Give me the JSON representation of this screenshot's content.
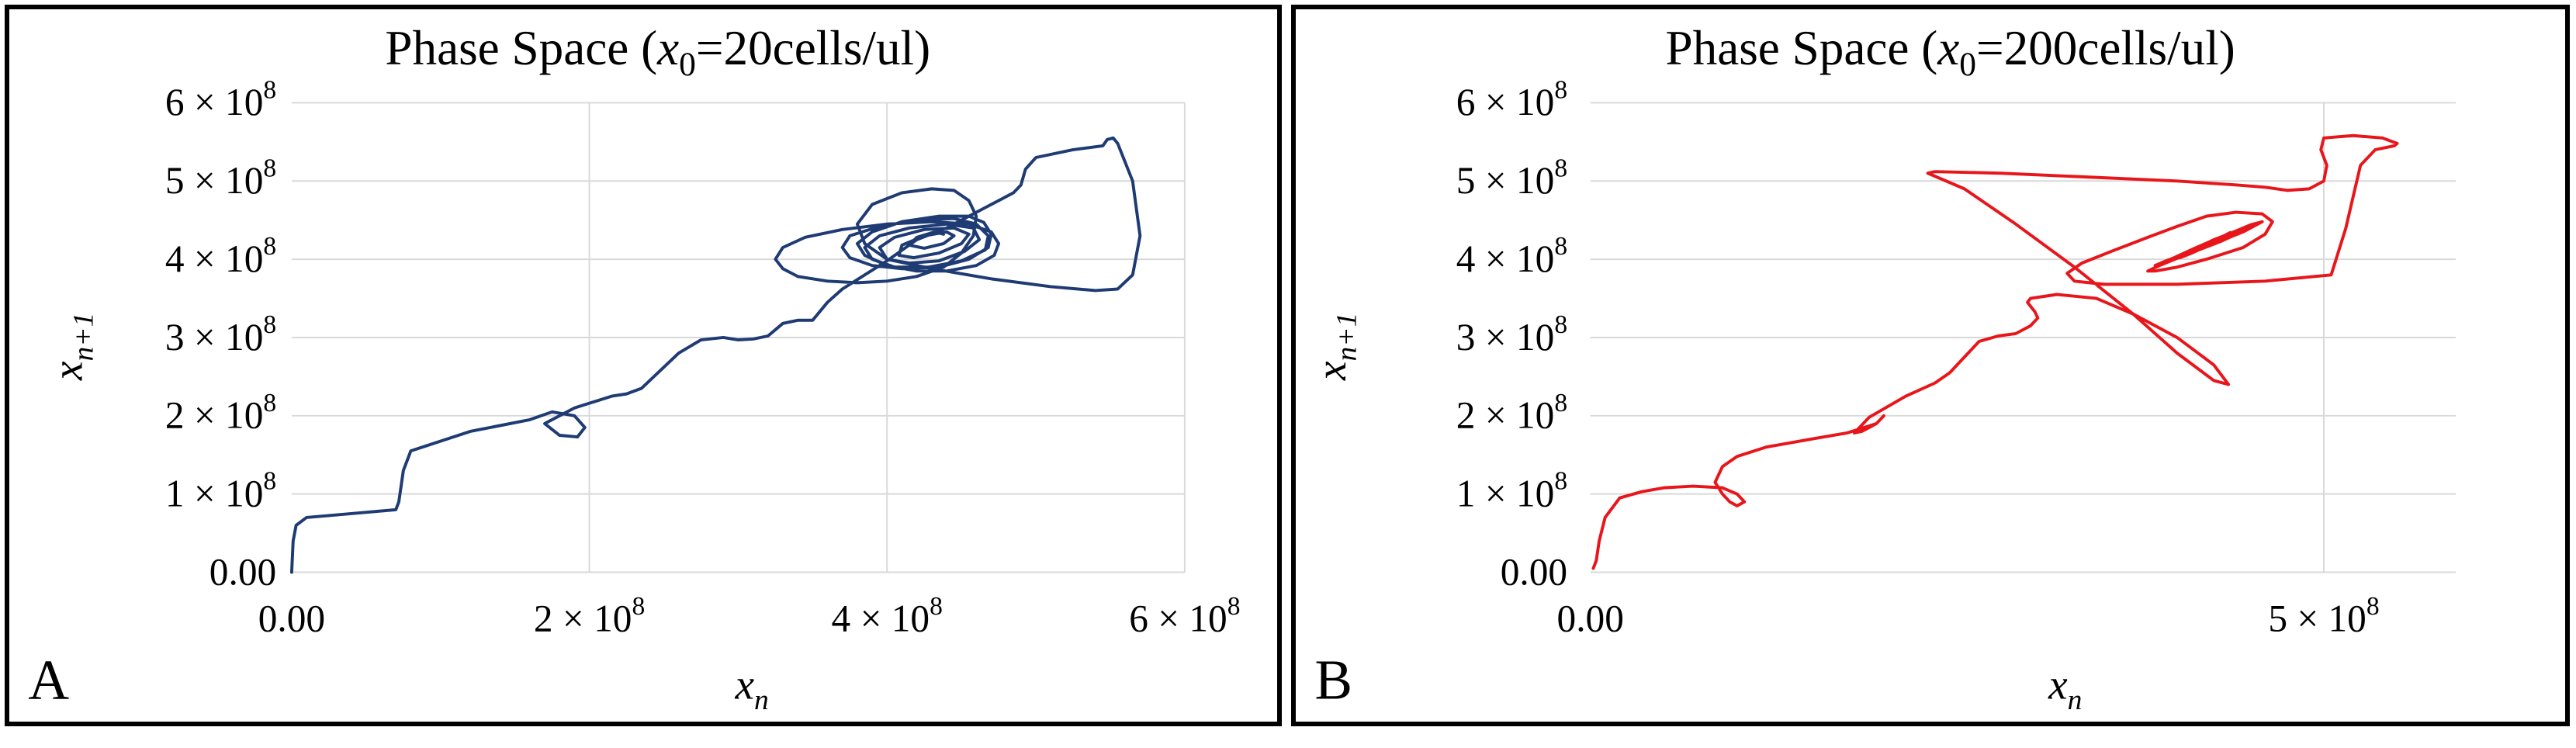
{
  "chart_data": [
    {
      "panel_label": "A",
      "type": "line",
      "title": "Phase Space (",
      "title_var": "x",
      "title_sub": "0",
      "title_rest": "=20cells/ul)",
      "xlabel_var": "x",
      "xlabel_sub": "n",
      "ylabel_var": "x",
      "ylabel_sub": "n+1",
      "xlim": [
        0,
        600000000
      ],
      "ylim": [
        0,
        600000000
      ],
      "x_ticks": [
        {
          "value": 0,
          "mant": "0.00",
          "exp": ""
        },
        {
          "value": 200000000,
          "mant": "2 × 10",
          "exp": "8"
        },
        {
          "value": 400000000,
          "mant": "4 × 10",
          "exp": "8"
        },
        {
          "value": 600000000,
          "mant": "6 × 10",
          "exp": "8"
        }
      ],
      "y_ticks": [
        {
          "value": 0,
          "mant": "0.00",
          "exp": ""
        },
        {
          "value": 100000000,
          "mant": "1 × 10",
          "exp": "8"
        },
        {
          "value": 200000000,
          "mant": "2 × 10",
          "exp": "8"
        },
        {
          "value": 300000000,
          "mant": "3 × 10",
          "exp": "8"
        },
        {
          "value": 400000000,
          "mant": "4 × 10",
          "exp": "8"
        },
        {
          "value": 500000000,
          "mant": "5 × 10",
          "exp": "8"
        },
        {
          "value": 600000000,
          "mant": "6 × 10",
          "exp": "8"
        }
      ],
      "grid": true,
      "color": "#1f3b73",
      "series": [
        {
          "x": [
            0,
            1000000,
            3000000,
            10000000,
            40000000,
            70000000,
            72000000,
            75000000,
            80000000,
            120000000,
            160000000,
            175000000,
            190000000,
            197000000,
            192000000,
            180000000,
            170000000,
            190000000,
            215000000,
            225000000,
            235000000,
            260000000,
            275000000,
            290000000,
            300000000,
            310000000,
            320000000,
            330000000,
            340000000,
            350000000,
            360000000,
            370000000,
            385000000,
            400000000,
            420000000,
            440000000,
            460000000,
            475000000,
            485000000,
            490000000,
            493000000,
            500000000,
            525000000,
            545000000,
            548000000,
            552000000,
            555000000,
            565000000,
            570000000,
            565000000,
            555000000,
            540000000,
            510000000,
            470000000,
            430000000,
            400000000,
            385000000,
            380000000,
            390000000,
            410000000,
            430000000,
            445000000,
            455000000,
            460000000,
            458000000,
            450000000,
            438000000,
            420000000,
            400000000,
            380000000,
            360000000,
            340000000,
            330000000,
            325000000,
            330000000,
            345000000,
            370000000,
            400000000,
            430000000,
            455000000,
            470000000,
            475000000,
            472000000,
            460000000,
            440000000,
            420000000,
            400000000,
            385000000,
            380000000,
            390000000,
            410000000,
            435000000,
            455000000,
            465000000,
            470000000,
            468000000,
            455000000,
            435000000,
            410000000,
            390000000,
            375000000,
            370000000,
            375000000,
            395000000,
            420000000,
            445000000,
            460000000,
            468000000,
            466000000,
            450000000,
            428000000,
            405000000,
            390000000,
            385000000,
            395000000,
            415000000,
            440000000,
            458000000,
            462000000,
            452000000,
            435000000,
            415000000,
            400000000,
            395000000,
            405000000,
            425000000,
            445000000,
            455000000,
            450000000,
            435000000,
            418000000,
            408000000,
            410000000,
            425000000,
            440000000,
            445000000,
            438000000,
            425000000,
            415000000,
            420000000,
            432000000,
            438000000
          ],
          "y": [
            0,
            40000000,
            60000000,
            70000000,
            75000000,
            80000000,
            90000000,
            130000000,
            155000000,
            180000000,
            195000000,
            205000000,
            200000000,
            185000000,
            173000000,
            175000000,
            190000000,
            210000000,
            225000000,
            228000000,
            235000000,
            280000000,
            297000000,
            300000000,
            297000000,
            298000000,
            302000000,
            318000000,
            322000000,
            322000000,
            345000000,
            362000000,
            380000000,
            398000000,
            425000000,
            440000000,
            460000000,
            475000000,
            485000000,
            495000000,
            515000000,
            530000000,
            540000000,
            545000000,
            553000000,
            555000000,
            548000000,
            500000000,
            430000000,
            380000000,
            362000000,
            360000000,
            365000000,
            375000000,
            388000000,
            400000000,
            420000000,
            445000000,
            470000000,
            485000000,
            490000000,
            488000000,
            475000000,
            455000000,
            430000000,
            408000000,
            390000000,
            378000000,
            372000000,
            370000000,
            372000000,
            378000000,
            388000000,
            400000000,
            415000000,
            428000000,
            438000000,
            445000000,
            448000000,
            445000000,
            435000000,
            420000000,
            405000000,
            392000000,
            385000000,
            385000000,
            392000000,
            405000000,
            420000000,
            435000000,
            448000000,
            455000000,
            455000000,
            447000000,
            432000000,
            415000000,
            400000000,
            390000000,
            388000000,
            392000000,
            402000000,
            415000000,
            430000000,
            442000000,
            450000000,
            452000000,
            445000000,
            430000000,
            412000000,
            398000000,
            390000000,
            390000000,
            400000000,
            415000000,
            430000000,
            440000000,
            445000000,
            440000000,
            425000000,
            410000000,
            398000000,
            395000000,
            400000000,
            415000000,
            428000000,
            438000000,
            440000000,
            432000000,
            420000000,
            408000000,
            402000000,
            405000000,
            418000000,
            430000000,
            435000000,
            430000000,
            420000000,
            414000000,
            418000000,
            428000000,
            435000000,
            432000000
          ]
        }
      ]
    },
    {
      "panel_label": "B",
      "type": "line",
      "title": "Phase Space (",
      "title_var": "x",
      "title_sub": "0",
      "title_rest": "=200cells/ul)",
      "xlabel_var": "x",
      "xlabel_sub": "n",
      "ylabel_var": "x",
      "ylabel_sub": "n+1",
      "xlim": [
        0,
        590000000
      ],
      "ylim": [
        0,
        600000000
      ],
      "x_ticks": [
        {
          "value": 0,
          "mant": "0.00",
          "exp": ""
        },
        {
          "value": 500000000,
          "mant": "5 × 10",
          "exp": "8"
        }
      ],
      "y_ticks": [
        {
          "value": 0,
          "mant": "0.00",
          "exp": ""
        },
        {
          "value": 100000000,
          "mant": "1 × 10",
          "exp": "8"
        },
        {
          "value": 200000000,
          "mant": "2 × 10",
          "exp": "8"
        },
        {
          "value": 300000000,
          "mant": "3 × 10",
          "exp": "8"
        },
        {
          "value": 400000000,
          "mant": "4 × 10",
          "exp": "8"
        },
        {
          "value": 500000000,
          "mant": "5 × 10",
          "exp": "8"
        },
        {
          "value": 600000000,
          "mant": "6 × 10",
          "exp": "8"
        }
      ],
      "grid": true,
      "color": "#e8161b",
      "series": [
        {
          "x": [
            2000000,
            4000000,
            6000000,
            10000000,
            20000000,
            35000000,
            50000000,
            70000000,
            90000000,
            100000000,
            105000000,
            100000000,
            95000000,
            90000000,
            85000000,
            90000000,
            100000000,
            120000000,
            150000000,
            175000000,
            195000000,
            200000000,
            195000000,
            185000000,
            180000000,
            190000000,
            215000000,
            235000000,
            245000000,
            255000000,
            265000000,
            278000000,
            290000000,
            300000000,
            305000000,
            303000000,
            300000000,
            298000000,
            300000000,
            318000000,
            345000000,
            370000000,
            400000000,
            425000000,
            435000000,
            425000000,
            400000000,
            370000000,
            330000000,
            290000000,
            255000000,
            230000000,
            235000000,
            280000000,
            340000000,
            400000000,
            440000000,
            460000000,
            475000000,
            490000000,
            500000000,
            502000000,
            498000000,
            500000000,
            520000000,
            540000000,
            550000000,
            548000000,
            535000000,
            525000000,
            520000000,
            515000000,
            505000000,
            460000000,
            400000000,
            350000000,
            330000000,
            325000000,
            335000000,
            355000000,
            380000000,
            400000000,
            420000000,
            440000000,
            458000000,
            465000000,
            460000000,
            445000000,
            420000000,
            400000000,
            385000000,
            380000000,
            388000000,
            405000000,
            425000000,
            445000000,
            455000000,
            458000000,
            450000000,
            435000000,
            418000000,
            402000000,
            390000000,
            385000000,
            392000000,
            408000000,
            425000000,
            440000000,
            450000000,
            452000000,
            445000000,
            430000000,
            412000000,
            398000000,
            392000000,
            398000000,
            412000000,
            428000000,
            440000000,
            443000000,
            437000000,
            424000000,
            410000000,
            402000000,
            405000000,
            418000000,
            430000000,
            436000000,
            433000000,
            422000000,
            413000000,
            415000000,
            425000000,
            432000000
          ],
          "y": [
            5000000,
            15000000,
            40000000,
            70000000,
            95000000,
            103000000,
            108000000,
            110000000,
            108000000,
            100000000,
            90000000,
            85000000,
            90000000,
            100000000,
            115000000,
            135000000,
            148000000,
            160000000,
            170000000,
            178000000,
            190000000,
            200000000,
            190000000,
            180000000,
            178000000,
            198000000,
            225000000,
            242000000,
            255000000,
            275000000,
            295000000,
            302000000,
            305000000,
            315000000,
            325000000,
            333000000,
            340000000,
            345000000,
            350000000,
            355000000,
            350000000,
            330000000,
            300000000,
            265000000,
            240000000,
            245000000,
            280000000,
            330000000,
            390000000,
            445000000,
            490000000,
            510000000,
            512000000,
            510000000,
            505000000,
            500000000,
            495000000,
            492000000,
            488000000,
            490000000,
            500000000,
            520000000,
            540000000,
            555000000,
            558000000,
            555000000,
            548000000,
            545000000,
            540000000,
            520000000,
            480000000,
            440000000,
            380000000,
            372000000,
            368000000,
            368000000,
            372000000,
            382000000,
            395000000,
            410000000,
            428000000,
            442000000,
            455000000,
            460000000,
            458000000,
            448000000,
            432000000,
            415000000,
            400000000,
            390000000,
            385000000,
            385000000,
            392000000,
            405000000,
            420000000,
            435000000,
            445000000,
            448000000,
            444000000,
            432000000,
            418000000,
            405000000,
            396000000,
            392000000,
            396000000,
            408000000,
            422000000,
            435000000,
            442000000,
            443000000,
            436000000,
            423000000,
            410000000,
            400000000,
            397000000,
            402000000,
            414000000,
            427000000,
            436000000,
            438000000,
            432000000,
            420000000,
            408000000,
            402000000,
            405000000,
            417000000,
            428000000,
            434000000,
            431000000,
            421000000,
            413000000,
            416000000,
            425000000,
            430000000
          ]
        }
      ]
    }
  ]
}
